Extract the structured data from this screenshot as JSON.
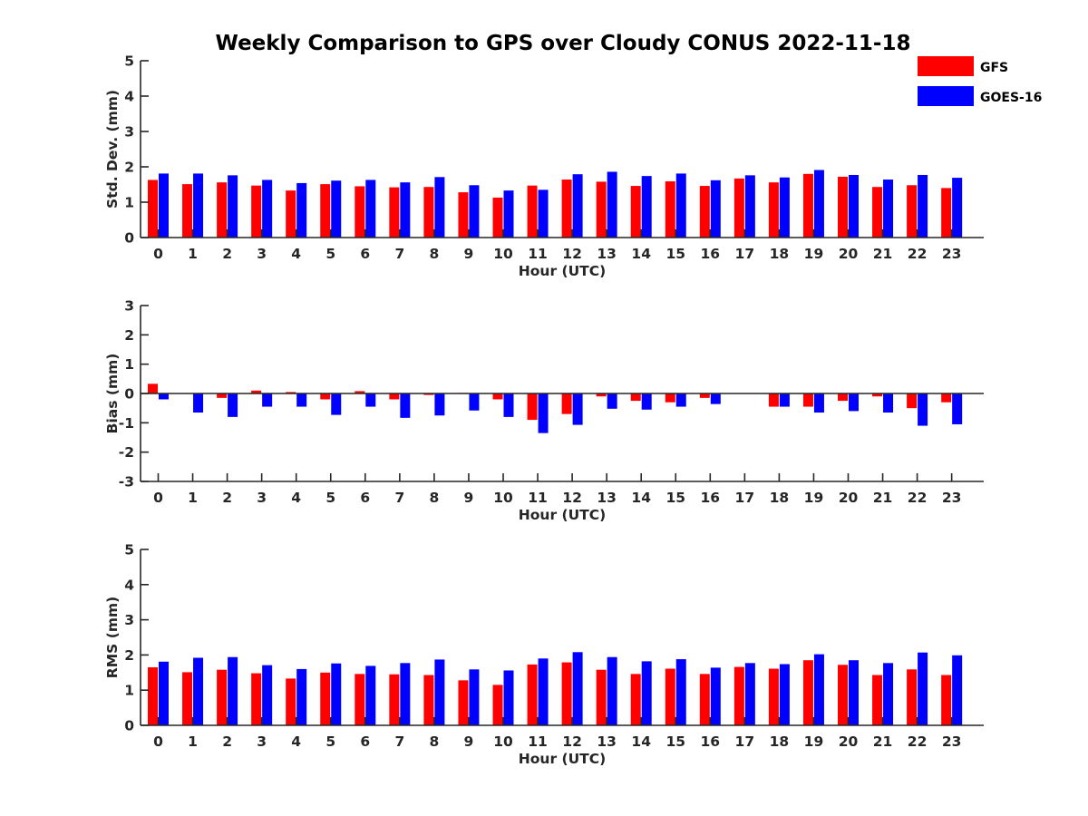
{
  "chart_data": {
    "title": "Weekly Comparison to GPS over Cloudy CONUS 2022-11-18",
    "type": "bar",
    "categories": [
      "0",
      "1",
      "2",
      "3",
      "4",
      "5",
      "6",
      "7",
      "8",
      "9",
      "10",
      "11",
      "12",
      "13",
      "14",
      "15",
      "16",
      "17",
      "18",
      "19",
      "20",
      "21",
      "22",
      "23"
    ],
    "legend": {
      "placement": "top-right",
      "entries": [
        {
          "name": "GFS",
          "color": "#ff0000"
        },
        {
          "name": "GOES-16",
          "color": "#0000ff"
        }
      ]
    },
    "panels": [
      {
        "id": "std",
        "ylabel": "Std. Dev. (mm)",
        "xlabel": "Hour (UTC)",
        "ylim": [
          0,
          5
        ],
        "yticks": [
          0,
          1,
          2,
          3,
          4,
          5
        ],
        "series": [
          {
            "name": "GFS",
            "color": "#ff0000",
            "values": [
              1.63,
              1.51,
              1.56,
              1.47,
              1.33,
              1.51,
              1.45,
              1.42,
              1.43,
              1.28,
              1.13,
              1.47,
              1.64,
              1.58,
              1.46,
              1.59,
              1.46,
              1.67,
              1.56,
              1.8,
              1.72,
              1.43,
              1.48,
              1.4
            ]
          },
          {
            "name": "GOES-16",
            "color": "#0000ff",
            "values": [
              1.81,
              1.81,
              1.76,
              1.63,
              1.54,
              1.61,
              1.63,
              1.56,
              1.71,
              1.48,
              1.33,
              1.35,
              1.79,
              1.86,
              1.74,
              1.81,
              1.62,
              1.76,
              1.7,
              1.91,
              1.77,
              1.64,
              1.77,
              1.69
            ]
          }
        ]
      },
      {
        "id": "bias",
        "ylabel": "Bias (mm)",
        "xlabel": "Hour (UTC)",
        "ylim": [
          -3,
          3
        ],
        "yticks": [
          -3,
          -2,
          -1,
          0,
          1,
          2,
          3
        ],
        "series": [
          {
            "name": "GFS",
            "color": "#ff0000",
            "values": [
              0.33,
              0.0,
              -0.15,
              0.1,
              0.05,
              -0.2,
              0.08,
              -0.2,
              -0.05,
              0.02,
              -0.2,
              -0.9,
              -0.7,
              -0.1,
              -0.25,
              -0.3,
              -0.15,
              0.0,
              -0.45,
              -0.45,
              -0.25,
              -0.1,
              -0.5,
              -0.3
            ]
          },
          {
            "name": "GOES-16",
            "color": "#0000ff",
            "values": [
              -0.2,
              -0.65,
              -0.8,
              -0.45,
              -0.45,
              -0.73,
              -0.45,
              -0.83,
              -0.75,
              -0.58,
              -0.8,
              -1.35,
              -1.07,
              -0.52,
              -0.55,
              -0.45,
              -0.36,
              0.0,
              -0.45,
              -0.65,
              -0.6,
              -0.65,
              -1.1,
              -1.05
            ]
          }
        ]
      },
      {
        "id": "rms",
        "ylabel": "RMS (mm)",
        "xlabel": "Hour (UTC)",
        "ylim": [
          0,
          5
        ],
        "yticks": [
          0,
          1,
          2,
          3,
          4,
          5
        ],
        "series": [
          {
            "name": "GFS",
            "color": "#ff0000",
            "values": [
              1.65,
              1.51,
              1.58,
              1.48,
              1.33,
              1.5,
              1.46,
              1.45,
              1.43,
              1.28,
              1.15,
              1.73,
              1.79,
              1.58,
              1.46,
              1.61,
              1.46,
              1.66,
              1.61,
              1.85,
              1.72,
              1.43,
              1.59,
              1.43
            ]
          },
          {
            "name": "GOES-16",
            "color": "#0000ff",
            "values": [
              1.81,
              1.92,
              1.94,
              1.71,
              1.6,
              1.76,
              1.69,
              1.77,
              1.87,
              1.59,
              1.56,
              1.9,
              2.08,
              1.94,
              1.82,
              1.88,
              1.64,
              1.77,
              1.74,
              2.02,
              1.85,
              1.77,
              2.07,
              1.99
            ]
          }
        ]
      }
    ]
  }
}
